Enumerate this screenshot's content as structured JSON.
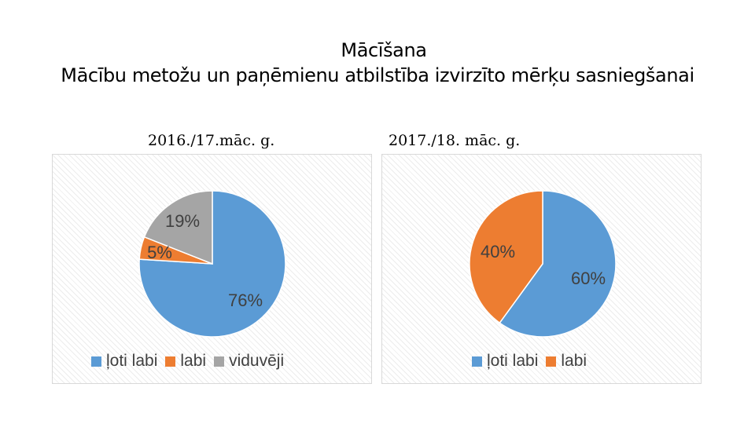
{
  "header": {
    "title": "Mācīšana",
    "subtitle": "Mācību metožu un paņēmienu atbilstība izvirzīto mērķu sasniegšanai"
  },
  "colors": {
    "loti_labi": "#5b9bd5",
    "labi": "#ed7d31",
    "viduveji": "#a5a5a5"
  },
  "chart_data": [
    {
      "type": "pie",
      "title": "2016./17.māc. g.",
      "categories": [
        "ļoti labi",
        "labi",
        "viduvēji"
      ],
      "values": [
        76,
        5,
        19
      ],
      "data_labels": [
        "76%",
        "5%",
        "19%"
      ],
      "colors": [
        "#5b9bd5",
        "#ed7d31",
        "#a5a5a5"
      ],
      "legend": "bottom"
    },
    {
      "type": "pie",
      "title": "2017./18. māc. g.",
      "categories": [
        "ļoti labi",
        "labi"
      ],
      "values": [
        60,
        40
      ],
      "data_labels": [
        "60%",
        "40%"
      ],
      "colors": [
        "#5b9bd5",
        "#ed7d31"
      ],
      "legend": "bottom"
    }
  ]
}
